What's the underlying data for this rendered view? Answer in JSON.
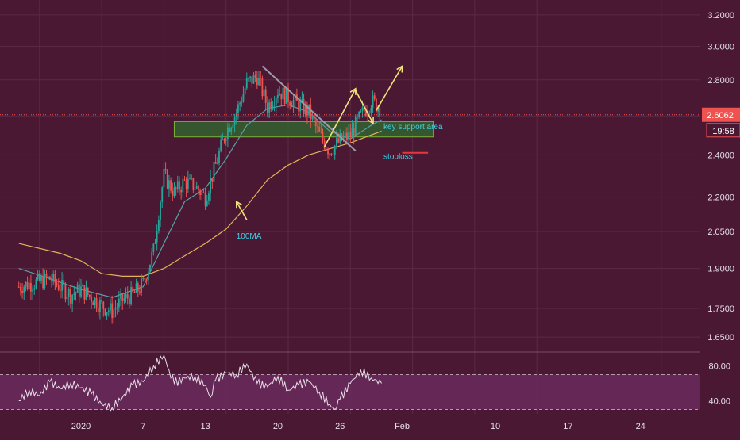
{
  "chart_data": {
    "type": "candlestick",
    "price_axis": {
      "min": 1.6,
      "max": 3.3,
      "log": true,
      "ticks": [
        "3.2000",
        "3.0000",
        "2.8000",
        "2.6000",
        "2.4000",
        "2.2000",
        "2.0500",
        "1.9000",
        "1.7500",
        "1.6500"
      ],
      "tick_values": [
        3.2,
        3.0,
        2.8,
        2.6,
        2.4,
        2.2,
        2.05,
        1.9,
        1.75,
        1.65
      ]
    },
    "time_axis": {
      "labels": [
        "2020",
        "7",
        "13",
        "20",
        "26",
        "Feb",
        "10",
        "17",
        "24"
      ],
      "label_days": [
        0,
        6,
        12,
        19,
        25,
        31,
        40,
        47,
        54
      ],
      "start": "2020-01-01",
      "end": "2020-02-29"
    },
    "last_price": {
      "value": 2.6062,
      "label": "2.6062",
      "countdown": "19:58"
    },
    "series": [
      {
        "kind": "candles",
        "price_path": [
          [
            -6,
            1.83
          ],
          [
            -3,
            1.86
          ],
          [
            -1,
            1.8
          ],
          [
            0,
            1.82
          ],
          [
            1,
            1.79
          ],
          [
            2,
            1.76
          ],
          [
            3,
            1.74
          ],
          [
            4,
            1.78
          ],
          [
            5,
            1.8
          ],
          [
            6,
            1.84
          ],
          [
            7,
            1.97
          ],
          [
            8,
            2.3
          ],
          [
            9,
            2.22
          ],
          [
            10,
            2.27
          ],
          [
            11,
            2.25
          ],
          [
            12,
            2.2
          ],
          [
            13,
            2.35
          ],
          [
            14,
            2.52
          ],
          [
            15,
            2.62
          ],
          [
            16,
            2.78
          ],
          [
            17,
            2.82
          ],
          [
            18,
            2.65
          ],
          [
            19,
            2.74
          ],
          [
            20,
            2.7
          ],
          [
            21,
            2.66
          ],
          [
            22,
            2.62
          ],
          [
            23,
            2.5
          ],
          [
            24,
            2.42
          ],
          [
            25,
            2.47
          ],
          [
            26,
            2.5
          ],
          [
            27,
            2.6
          ],
          [
            28,
            2.68
          ],
          [
            29,
            2.64
          ]
        ]
      },
      {
        "kind": "line",
        "role": "short-ma",
        "color": "#5aa0a8",
        "path": [
          [
            -6,
            1.9
          ],
          [
            -3,
            1.86
          ],
          [
            0,
            1.82
          ],
          [
            3,
            1.79
          ],
          [
            6,
            1.83
          ],
          [
            8,
            2.0
          ],
          [
            10,
            2.18
          ],
          [
            12,
            2.24
          ],
          [
            14,
            2.38
          ],
          [
            16,
            2.55
          ],
          [
            18,
            2.64
          ],
          [
            20,
            2.66
          ],
          [
            22,
            2.62
          ],
          [
            24,
            2.52
          ],
          [
            26,
            2.48
          ],
          [
            28,
            2.55
          ],
          [
            29,
            2.58
          ]
        ]
      },
      {
        "kind": "line",
        "role": "100ma",
        "color": "#e3b35a",
        "path": [
          [
            -6,
            2.0
          ],
          [
            -2,
            1.96
          ],
          [
            0,
            1.93
          ],
          [
            2,
            1.88
          ],
          [
            4,
            1.87
          ],
          [
            6,
            1.87
          ],
          [
            8,
            1.9
          ],
          [
            10,
            1.95
          ],
          [
            12,
            2.0
          ],
          [
            14,
            2.06
          ],
          [
            16,
            2.16
          ],
          [
            18,
            2.28
          ],
          [
            20,
            2.35
          ],
          [
            22,
            2.4
          ],
          [
            24,
            2.43
          ],
          [
            26,
            2.46
          ],
          [
            28,
            2.5
          ],
          [
            29,
            2.52
          ]
        ]
      }
    ],
    "drawings": {
      "support_zone": {
        "x0": 9,
        "x1": 34,
        "y0": 2.49,
        "y1": 2.57,
        "color": "#2f6b2f"
      },
      "trendline": {
        "from": [
          17.5,
          2.88
        ],
        "to": [
          26.5,
          2.42
        ],
        "color": "#9a9aa8"
      },
      "stoploss_line": {
        "x0": 31,
        "x1": 33.5,
        "y": 2.41,
        "color": "#e23a3a"
      },
      "arrows": [
        {
          "from": [
            23.5,
            2.44
          ],
          "to": [
            26.5,
            2.75
          ],
          "color": "#f2e37a"
        },
        {
          "from": [
            26.5,
            2.74
          ],
          "to": [
            28.2,
            2.56
          ],
          "color": "#f2e37a"
        },
        {
          "from": [
            28.5,
            2.63
          ],
          "to": [
            31.0,
            2.88
          ],
          "color": "#f2e37a"
        },
        {
          "from": [
            16.0,
            2.1
          ],
          "to": [
            15.0,
            2.18
          ],
          "color": "#f2e37a"
        }
      ]
    },
    "annotations": [
      {
        "text": "key support area",
        "x": 29.2,
        "y": 2.53,
        "color": "#3ed2e6"
      },
      {
        "text": "stoploss",
        "x": 29.2,
        "y": 2.38,
        "color": "#3ed2e6"
      },
      {
        "text": "100MA",
        "x": 15.0,
        "y": 2.02,
        "color": "#3ed2e6"
      }
    ],
    "oscillator": {
      "ticks": [
        "80.00",
        "40.00"
      ],
      "tick_values": [
        80,
        40
      ],
      "band": [
        70,
        30
      ],
      "range": [
        25,
        95
      ],
      "path": [
        [
          -6,
          40
        ],
        [
          -5,
          52
        ],
        [
          -4,
          46
        ],
        [
          -3,
          62
        ],
        [
          -2,
          54
        ],
        [
          -1,
          60
        ],
        [
          0,
          55
        ],
        [
          1,
          48
        ],
        [
          2,
          36
        ],
        [
          3,
          32
        ],
        [
          4,
          44
        ],
        [
          5,
          58
        ],
        [
          6,
          62
        ],
        [
          7,
          80
        ],
        [
          8,
          92
        ],
        [
          8.5,
          75
        ],
        [
          9,
          60
        ],
        [
          10,
          66
        ],
        [
          11,
          68
        ],
        [
          12,
          58
        ],
        [
          12.5,
          44
        ],
        [
          13,
          64
        ],
        [
          14,
          72
        ],
        [
          15,
          70
        ],
        [
          16,
          82
        ],
        [
          17,
          60
        ],
        [
          18,
          56
        ],
        [
          19,
          68
        ],
        [
          20,
          52
        ],
        [
          21,
          58
        ],
        [
          22,
          62
        ],
        [
          23,
          50
        ],
        [
          24,
          36
        ],
        [
          24.5,
          30
        ],
        [
          25,
          42
        ],
        [
          26,
          60
        ],
        [
          27,
          75
        ],
        [
          28,
          66
        ],
        [
          29,
          60
        ]
      ]
    }
  }
}
